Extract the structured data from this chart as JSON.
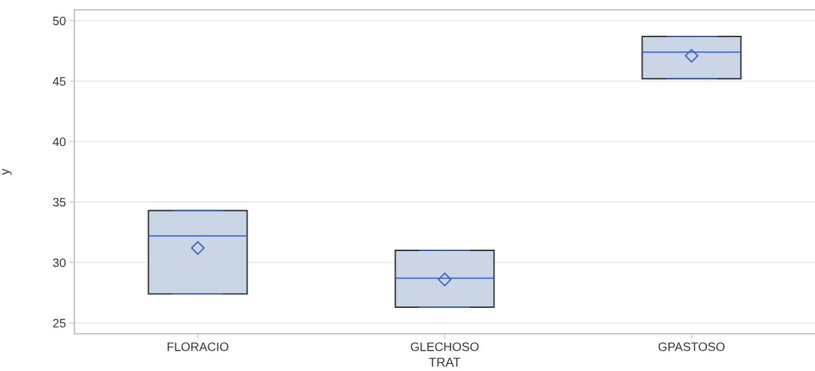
{
  "chart_data": {
    "type": "box",
    "xlabel": "TRAT",
    "ylabel": "y",
    "categories": [
      "FLORACIO",
      "GLECHOSO",
      "GPASTOSO"
    ],
    "series": [
      {
        "color": "#cad5e6",
        "boxes": [
          {
            "low": 27.4,
            "q1": 27.4,
            "median": 32.2,
            "q3": 34.3,
            "high": 34.3,
            "mean": 31.2
          },
          {
            "low": 26.3,
            "q1": 26.3,
            "median": 28.7,
            "q3": 31.0,
            "high": 31.0,
            "mean": 28.6
          },
          {
            "low": 45.2,
            "q1": 45.2,
            "median": 47.4,
            "q3": 48.7,
            "high": 48.7,
            "mean": 47.1
          }
        ]
      }
    ],
    "ylim": [
      24.1,
      50.9
    ],
    "yticks": [
      25,
      30,
      35,
      40,
      45,
      50
    ],
    "grid": "y",
    "marker": "diamond"
  }
}
